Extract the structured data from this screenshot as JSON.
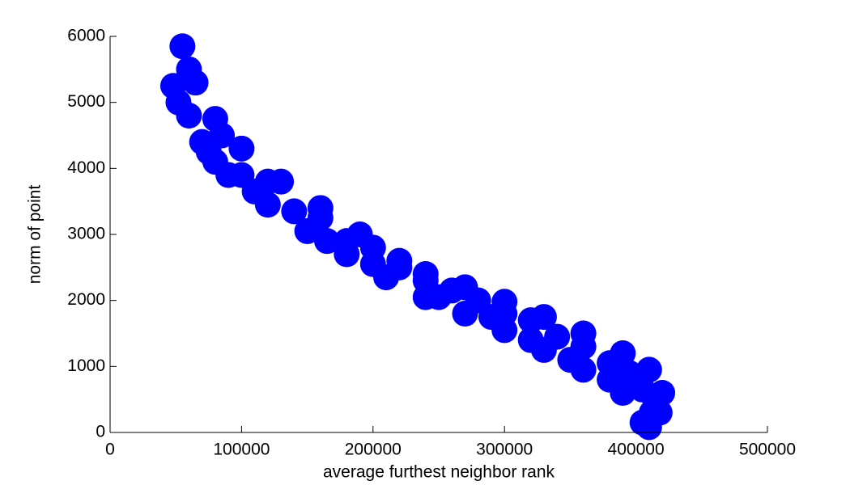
{
  "chart_data": {
    "type": "scatter",
    "x_label": "average furthest neighbor rank",
    "y_label": "norm of point",
    "xlim": [
      0,
      500000
    ],
    "xticks": [
      0,
      100000,
      200000,
      300000,
      400000,
      500000
    ],
    "ylim": [
      0,
      6000
    ],
    "yticks": [
      0,
      1000,
      2000,
      3000,
      4000,
      5000,
      6000
    ],
    "color": "#0000ff",
    "x": [
      55000,
      65000,
      80000,
      100000,
      130000,
      160000,
      190000,
      220000,
      240000,
      270000,
      300000,
      330000,
      360000,
      390000,
      410000,
      420000,
      418000,
      410000,
      48000,
      60000,
      75000,
      90000,
      120000,
      150000,
      180000,
      210000,
      240000,
      270000,
      300000,
      330000,
      360000,
      390000,
      405000,
      52000,
      70000,
      100000,
      140000,
      180000,
      220000,
      260000,
      300000,
      340000,
      380000,
      405000,
      412000,
      60000,
      85000,
      120000,
      160000,
      200000,
      240000,
      280000,
      320000,
      360000,
      395000,
      415000,
      80000,
      110000,
      165000,
      200000,
      250000,
      290000,
      320000,
      350000,
      380000
    ],
    "y": [
      5850,
      5300,
      4750,
      4300,
      3800,
      3400,
      3000,
      2600,
      2400,
      2200,
      1980,
      1750,
      1500,
      1200,
      950,
      600,
      300,
      80,
      5250,
      4800,
      4250,
      3900,
      3450,
      3050,
      2700,
      2350,
      2050,
      1800,
      1550,
      1250,
      950,
      600,
      150,
      5000,
      4400,
      3900,
      3350,
      2900,
      2500,
      2150,
      1800,
      1450,
      1050,
      650,
      300,
      5500,
      4500,
      3800,
      3250,
      2800,
      2300,
      2000,
      1700,
      1300,
      900,
      450,
      4100,
      3650,
      2900,
      2550,
      2050,
      1750,
      1400,
      1100,
      800
    ]
  }
}
